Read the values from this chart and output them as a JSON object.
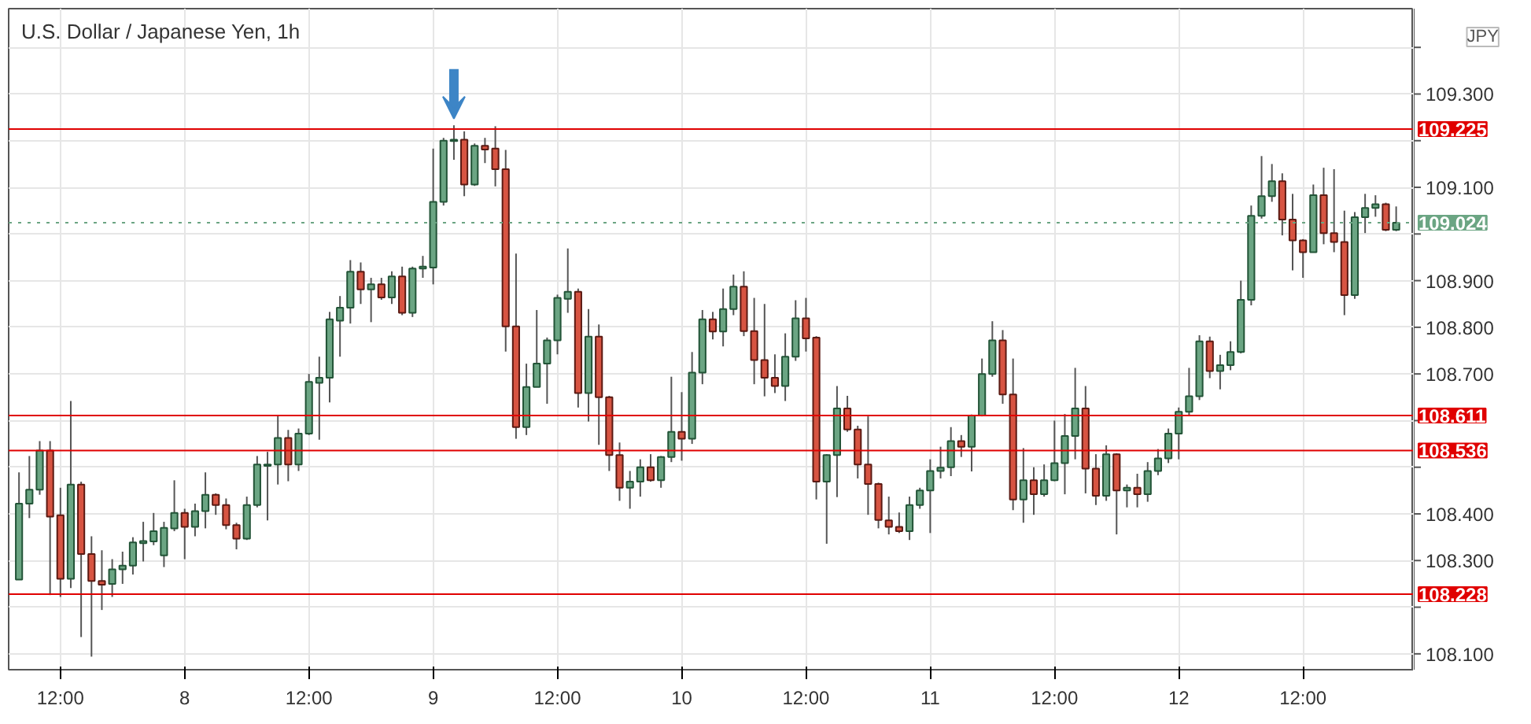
{
  "chart_data": {
    "type": "candlestick",
    "title": "U.S. Dollar / Japanese Yen, 1h",
    "annotations": [
      "JPY"
    ],
    "ylim": [
      108.066,
      109.483
    ],
    "yticks": [
      {
        "value": 108.1,
        "label": "108.100"
      },
      {
        "value": 108.2,
        "label": null
      },
      {
        "value": 108.3,
        "label": "108.300"
      },
      {
        "value": 108.4,
        "label": "108.400"
      },
      {
        "value": 108.5,
        "label": null
      },
      {
        "value": 108.6,
        "label": null
      },
      {
        "value": 108.7,
        "label": "108.700"
      },
      {
        "value": 108.8,
        "label": "108.800"
      },
      {
        "value": 108.9,
        "label": "108.900"
      },
      {
        "value": 109.0,
        "label": null
      },
      {
        "value": 109.1,
        "label": "109.100"
      },
      {
        "value": 109.2,
        "label": null
      },
      {
        "value": 109.3,
        "label": "109.300"
      },
      {
        "value": 109.4,
        "label": null
      }
    ],
    "grid": true,
    "ref_lines": [
      {
        "axis": "y",
        "value": 109.225,
        "label": "109.225",
        "color": "#e00000"
      },
      {
        "axis": "y",
        "value": 108.611,
        "label": "108.611",
        "color": "#e00000"
      },
      {
        "axis": "y",
        "value": 108.536,
        "label": "108.536",
        "color": "#e00000"
      },
      {
        "axis": "y",
        "value": 108.228,
        "label": "108.228",
        "color": "#e00000"
      },
      {
        "axis": "y",
        "value": 109.024,
        "label": "109.024",
        "color": "#6ba583",
        "line_style": "dotted"
      }
    ],
    "categories": [
      null,
      null,
      null,
      null,
      "12:00",
      null,
      null,
      null,
      null,
      null,
      null,
      null,
      null,
      null,
      null,
      null,
      "8",
      null,
      null,
      null,
      null,
      null,
      null,
      null,
      null,
      null,
      null,
      null,
      "12:00",
      null,
      null,
      null,
      null,
      null,
      null,
      null,
      null,
      null,
      null,
      null,
      "9",
      null,
      null,
      null,
      null,
      null,
      null,
      null,
      null,
      null,
      null,
      null,
      "12:00",
      null,
      null,
      null,
      null,
      null,
      null,
      null,
      null,
      null,
      null,
      null,
      "10",
      null,
      null,
      null,
      null,
      null,
      null,
      null,
      null,
      null,
      null,
      null,
      "12:00",
      null,
      null,
      null,
      null,
      null,
      null,
      null,
      null,
      null,
      null,
      null,
      "11",
      null,
      null,
      null,
      null,
      null,
      null,
      null,
      null,
      null,
      null,
      null,
      "12:00",
      null,
      null,
      null,
      null,
      null,
      null,
      null,
      null,
      null,
      null,
      null,
      "12",
      null,
      null,
      null,
      null,
      null,
      null,
      null,
      null,
      null,
      null,
      null,
      "12:00",
      null,
      null,
      null,
      null,
      null,
      null,
      null,
      null,
      null
    ],
    "ohlc": [
      [
        108.259,
        108.489,
        108.259,
        108.422
      ],
      [
        108.422,
        108.524,
        108.391,
        108.452
      ],
      [
        108.452,
        108.556,
        108.441,
        108.536
      ],
      [
        108.536,
        108.556,
        108.226,
        108.394
      ],
      [
        108.397,
        108.456,
        108.222,
        108.261
      ],
      [
        108.261,
        108.642,
        108.241,
        108.463
      ],
      [
        108.463,
        108.469,
        108.136,
        108.314
      ],
      [
        108.314,
        108.352,
        108.094,
        108.256
      ],
      [
        108.256,
        108.322,
        108.194,
        108.248
      ],
      [
        108.25,
        108.303,
        108.222,
        108.281
      ],
      [
        108.281,
        108.319,
        108.25,
        108.289
      ],
      [
        108.289,
        108.35,
        108.27,
        108.339
      ],
      [
        108.337,
        108.383,
        108.298,
        108.342
      ],
      [
        108.341,
        108.402,
        108.333,
        108.363
      ],
      [
        108.311,
        108.383,
        108.286,
        108.37
      ],
      [
        108.369,
        108.472,
        108.363,
        108.402
      ],
      [
        108.402,
        108.411,
        108.303,
        108.372
      ],
      [
        108.372,
        108.422,
        108.352,
        108.406
      ],
      [
        108.406,
        108.489,
        108.369,
        108.441
      ],
      [
        108.441,
        108.444,
        108.398,
        108.419
      ],
      [
        108.419,
        108.433,
        108.367,
        108.376
      ],
      [
        108.376,
        108.381,
        108.324,
        108.347
      ],
      [
        108.347,
        108.437,
        108.344,
        108.419
      ],
      [
        108.419,
        108.524,
        108.414,
        108.506
      ],
      [
        108.503,
        108.533,
        108.386,
        108.506
      ],
      [
        108.506,
        108.611,
        108.463,
        108.563
      ],
      [
        108.563,
        108.58,
        108.47,
        108.506
      ],
      [
        108.506,
        108.583,
        108.492,
        108.572
      ],
      [
        108.572,
        108.7,
        108.569,
        108.683
      ],
      [
        108.681,
        108.737,
        108.559,
        108.692
      ],
      [
        108.692,
        108.833,
        108.639,
        108.817
      ],
      [
        108.814,
        108.867,
        108.737,
        108.842
      ],
      [
        108.842,
        108.944,
        108.808,
        108.919
      ],
      [
        108.919,
        108.939,
        108.85,
        108.881
      ],
      [
        108.881,
        108.906,
        108.811,
        108.892
      ],
      [
        108.892,
        108.906,
        108.859,
        108.864
      ],
      [
        108.864,
        108.92,
        108.85,
        108.909
      ],
      [
        108.909,
        108.93,
        108.826,
        108.831
      ],
      [
        108.831,
        108.93,
        108.822,
        108.926
      ],
      [
        108.926,
        108.953,
        108.906,
        108.93
      ],
      [
        108.928,
        109.183,
        108.892,
        109.069
      ],
      [
        109.069,
        109.206,
        109.061,
        109.2
      ],
      [
        109.199,
        109.233,
        109.159,
        109.202
      ],
      [
        109.202,
        109.22,
        109.081,
        109.106
      ],
      [
        109.106,
        109.194,
        109.103,
        109.189
      ],
      [
        109.189,
        109.206,
        109.152,
        109.181
      ],
      [
        109.183,
        109.231,
        109.102,
        109.139
      ],
      [
        109.139,
        109.18,
        108.748,
        108.802
      ],
      [
        108.802,
        108.958,
        108.561,
        108.586
      ],
      [
        108.586,
        108.722,
        108.569,
        108.672
      ],
      [
        108.672,
        108.837,
        108.672,
        108.722
      ],
      [
        108.722,
        108.778,
        108.636,
        108.772
      ],
      [
        108.772,
        108.87,
        108.742,
        108.863
      ],
      [
        108.861,
        108.969,
        108.831,
        108.876
      ],
      [
        108.876,
        108.883,
        108.628,
        108.659
      ],
      [
        108.659,
        108.839,
        108.598,
        108.78
      ],
      [
        108.78,
        108.806,
        108.548,
        108.65
      ],
      [
        108.65,
        108.653,
        108.492,
        108.526
      ],
      [
        108.526,
        108.553,
        108.428,
        108.456
      ],
      [
        108.456,
        108.492,
        108.411,
        108.469
      ],
      [
        108.469,
        108.517,
        108.437,
        108.5
      ],
      [
        108.5,
        108.528,
        108.469,
        108.472
      ],
      [
        108.472,
        108.524,
        108.456,
        108.522
      ],
      [
        108.522,
        108.694,
        108.511,
        108.576
      ],
      [
        108.576,
        108.661,
        108.514,
        108.561
      ],
      [
        108.561,
        108.747,
        108.55,
        108.703
      ],
      [
        108.703,
        108.837,
        108.678,
        108.817
      ],
      [
        108.817,
        108.833,
        108.774,
        108.791
      ],
      [
        108.791,
        108.883,
        108.759,
        108.839
      ],
      [
        108.839,
        108.913,
        108.826,
        108.887
      ],
      [
        108.887,
        108.92,
        108.781,
        108.792
      ],
      [
        108.792,
        108.863,
        108.678,
        108.73
      ],
      [
        108.73,
        108.85,
        108.652,
        108.692
      ],
      [
        108.692,
        108.742,
        108.659,
        108.674
      ],
      [
        108.674,
        108.787,
        108.642,
        108.737
      ],
      [
        108.737,
        108.858,
        108.728,
        108.819
      ],
      [
        108.819,
        108.863,
        108.748,
        108.776
      ],
      [
        108.778,
        108.781,
        108.431,
        108.469
      ],
      [
        108.469,
        108.528,
        108.336,
        108.526
      ],
      [
        108.526,
        108.674,
        108.436,
        108.626
      ],
      [
        108.626,
        108.653,
        108.576,
        108.581
      ],
      [
        108.581,
        108.589,
        108.476,
        108.506
      ],
      [
        108.506,
        108.609,
        108.398,
        108.464
      ],
      [
        108.464,
        108.467,
        108.369,
        108.387
      ],
      [
        108.386,
        108.437,
        108.356,
        108.372
      ],
      [
        108.372,
        108.403,
        108.359,
        108.363
      ],
      [
        108.363,
        108.437,
        108.344,
        108.419
      ],
      [
        108.419,
        108.456,
        108.411,
        108.45
      ],
      [
        108.45,
        108.517,
        108.359,
        108.492
      ],
      [
        108.492,
        108.544,
        108.476,
        108.499
      ],
      [
        108.5,
        108.586,
        108.481,
        108.556
      ],
      [
        108.556,
        108.569,
        108.522,
        108.544
      ],
      [
        108.544,
        108.613,
        108.491,
        108.611
      ],
      [
        108.611,
        108.733,
        108.609,
        108.7
      ],
      [
        108.7,
        108.813,
        108.694,
        108.772
      ],
      [
        108.772,
        108.794,
        108.636,
        108.656
      ],
      [
        108.656,
        108.733,
        108.408,
        108.431
      ],
      [
        108.431,
        108.541,
        108.381,
        108.472
      ],
      [
        108.472,
        108.5,
        108.398,
        108.442
      ],
      [
        108.442,
        108.506,
        108.437,
        108.472
      ],
      [
        108.472,
        108.6,
        108.47,
        108.509
      ],
      [
        108.509,
        108.614,
        108.442,
        108.567
      ],
      [
        108.567,
        108.713,
        108.517,
        108.626
      ],
      [
        108.626,
        108.674,
        108.444,
        108.497
      ],
      [
        108.497,
        108.528,
        108.419,
        108.439
      ],
      [
        108.439,
        108.547,
        108.428,
        108.528
      ],
      [
        108.528,
        108.53,
        108.356,
        108.45
      ],
      [
        108.45,
        108.463,
        108.414,
        108.456
      ],
      [
        108.456,
        108.486,
        108.414,
        108.442
      ],
      [
        108.442,
        108.511,
        108.426,
        108.492
      ],
      [
        108.492,
        108.539,
        108.483,
        108.519
      ],
      [
        108.519,
        108.583,
        108.509,
        108.572
      ],
      [
        108.572,
        108.628,
        108.517,
        108.619
      ],
      [
        108.619,
        108.713,
        108.611,
        108.652
      ],
      [
        108.652,
        108.783,
        108.644,
        108.77
      ],
      [
        108.77,
        108.78,
        108.691,
        108.706
      ],
      [
        108.706,
        108.741,
        108.667,
        108.719
      ],
      [
        108.719,
        108.77,
        108.708,
        108.747
      ],
      [
        108.747,
        108.9,
        108.744,
        108.859
      ],
      [
        108.859,
        109.061,
        108.847,
        109.039
      ],
      [
        109.039,
        109.167,
        109.033,
        109.081
      ],
      [
        109.081,
        109.15,
        109.069,
        109.113
      ],
      [
        109.113,
        109.13,
        108.997,
        109.031
      ],
      [
        109.031,
        109.086,
        108.922,
        108.986
      ],
      [
        108.986,
        108.989,
        108.906,
        108.961
      ],
      [
        108.961,
        109.106,
        108.961,
        109.083
      ],
      [
        109.083,
        109.142,
        108.978,
        109.002
      ],
      [
        109.002,
        109.139,
        108.961,
        108.983
      ],
      [
        108.983,
        109.05,
        108.826,
        108.869
      ],
      [
        108.869,
        109.047,
        108.861,
        109.036
      ],
      [
        109.036,
        109.086,
        109.002,
        109.056
      ],
      [
        109.056,
        109.083,
        109.037,
        109.064
      ],
      [
        109.064,
        109.067,
        109.006,
        109.009
      ],
      [
        109.009,
        109.059,
        109.006,
        109.024
      ]
    ]
  }
}
